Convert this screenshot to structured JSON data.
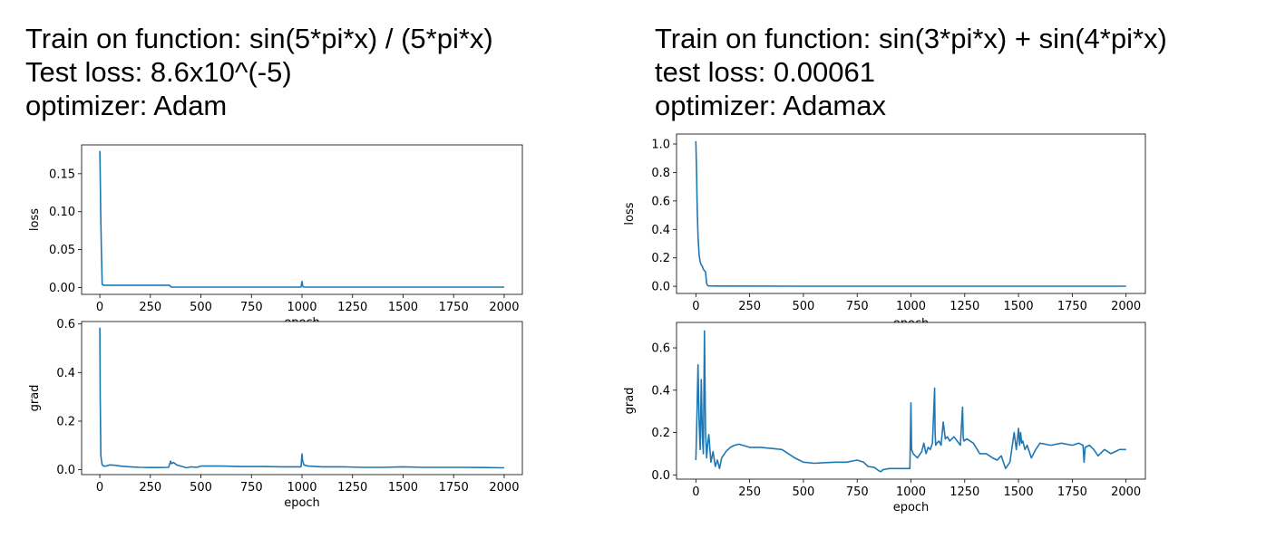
{
  "left_panel": {
    "title_line1": "Train on function: sin(5*pi*x) / (5*pi*x)",
    "title_line2": "Test loss: 8.6x10^(-5)",
    "title_line3": "optimizer: Adam"
  },
  "right_panel": {
    "title_line1": "Train on function: sin(3*pi*x) + sin(4*pi*x)",
    "title_line2": "test loss: 0.00061",
    "title_line3": "optimizer: Adamax"
  },
  "chart_data": [
    {
      "id": "left-loss",
      "type": "line",
      "title": "",
      "xlabel": "epoch",
      "ylabel": "loss",
      "xlim": [
        -90,
        2090
      ],
      "ylim": [
        -0.009,
        0.188
      ],
      "xticks": [
        0,
        250,
        500,
        750,
        1000,
        1250,
        1500,
        1750,
        2000
      ],
      "yticks": [
        0.0,
        0.05,
        0.1,
        0.15
      ],
      "ytick_labels": [
        "0.00",
        "0.05",
        "0.10",
        "0.15"
      ],
      "line_color": "#1f77b4",
      "x": [
        0,
        2,
        4,
        8,
        12,
        20,
        50,
        100,
        200,
        300,
        345,
        350,
        355,
        400,
        500,
        700,
        900,
        995,
        1000,
        1003,
        1005,
        1010,
        1200,
        1500,
        1800,
        2000
      ],
      "y": [
        0.18,
        0.15,
        0.1,
        0.05,
        0.004,
        0.003,
        0.003,
        0.003,
        0.003,
        0.003,
        0.003,
        0.001,
        0.0005,
        0.0005,
        0.0005,
        0.0005,
        0.0005,
        0.0005,
        0.008,
        0.003,
        0.001,
        0.0007,
        0.0006,
        0.0005,
        0.0005,
        0.0005
      ]
    },
    {
      "id": "left-grad",
      "type": "line",
      "title": "",
      "xlabel": "epoch",
      "ylabel": "grad",
      "xlim": [
        -90,
        2090
      ],
      "ylim": [
        -0.02,
        0.61
      ],
      "xticks": [
        0,
        250,
        500,
        750,
        1000,
        1250,
        1500,
        1750,
        2000
      ],
      "yticks": [
        0.0,
        0.2,
        0.4,
        0.6
      ],
      "ytick_labels": [
        "0.0",
        "0.2",
        "0.4",
        "0.6"
      ],
      "line_color": "#1f77b4",
      "x": [
        0,
        2,
        5,
        8,
        12,
        20,
        30,
        50,
        80,
        100,
        150,
        200,
        250,
        300,
        340,
        350,
        355,
        365,
        380,
        400,
        430,
        450,
        480,
        500,
        600,
        700,
        800,
        900,
        995,
        1000,
        1003,
        1010,
        1030,
        1100,
        1200,
        1300,
        1400,
        1500,
        1600,
        1700,
        1800,
        1900,
        2000
      ],
      "y": [
        0.585,
        0.3,
        0.06,
        0.04,
        0.02,
        0.015,
        0.015,
        0.02,
        0.018,
        0.015,
        0.012,
        0.01,
        0.009,
        0.009,
        0.01,
        0.035,
        0.025,
        0.03,
        0.02,
        0.015,
        0.008,
        0.012,
        0.01,
        0.015,
        0.015,
        0.013,
        0.013,
        0.012,
        0.012,
        0.065,
        0.035,
        0.02,
        0.015,
        0.012,
        0.012,
        0.01,
        0.01,
        0.012,
        0.01,
        0.01,
        0.01,
        0.009,
        0.008
      ]
    },
    {
      "id": "right-loss",
      "type": "line",
      "title": "",
      "xlabel": "epoch",
      "ylabel": "loss",
      "xlim": [
        -90,
        2090
      ],
      "ylim": [
        -0.05,
        1.07
      ],
      "xticks": [
        0,
        250,
        500,
        750,
        1000,
        1250,
        1500,
        1750,
        2000
      ],
      "yticks": [
        0.0,
        0.2,
        0.4,
        0.6,
        0.8,
        1.0
      ],
      "ytick_labels": [
        "0.0",
        "0.2",
        "0.4",
        "0.6",
        "0.8",
        "1.0"
      ],
      "line_color": "#1f77b4",
      "x": [
        0,
        3,
        6,
        10,
        15,
        20,
        25,
        30,
        35,
        40,
        45,
        50,
        55,
        60,
        100,
        500,
        1000,
        1500,
        2000
      ],
      "y": [
        1.02,
        0.8,
        0.55,
        0.35,
        0.22,
        0.17,
        0.15,
        0.14,
        0.12,
        0.11,
        0.1,
        0.02,
        0.005,
        0.003,
        0.002,
        0.001,
        0.001,
        0.001,
        0.001
      ]
    },
    {
      "id": "right-grad",
      "type": "line",
      "title": "",
      "xlabel": "epoch",
      "ylabel": "grad",
      "xlim": [
        -90,
        2090
      ],
      "ylim": [
        -0.02,
        0.72
      ],
      "xticks": [
        0,
        250,
        500,
        750,
        1000,
        1250,
        1500,
        1750,
        2000
      ],
      "yticks": [
        0.0,
        0.2,
        0.4,
        0.6
      ],
      "ytick_labels": [
        "0.0",
        "0.2",
        "0.4",
        "0.6"
      ],
      "line_color": "#1f77b4",
      "x": [
        0,
        5,
        10,
        15,
        20,
        25,
        30,
        35,
        40,
        45,
        50,
        55,
        60,
        70,
        80,
        90,
        100,
        110,
        120,
        140,
        160,
        180,
        200,
        250,
        300,
        350,
        400,
        430,
        460,
        480,
        500,
        550,
        600,
        650,
        700,
        750,
        780,
        800,
        830,
        850,
        860,
        870,
        900,
        950,
        995,
        1000,
        1003,
        1010,
        1030,
        1050,
        1060,
        1070,
        1080,
        1090,
        1100,
        1110,
        1112,
        1115,
        1120,
        1130,
        1140,
        1150,
        1160,
        1170,
        1180,
        1200,
        1230,
        1240,
        1243,
        1246,
        1260,
        1290,
        1320,
        1350,
        1380,
        1400,
        1420,
        1440,
        1460,
        1480,
        1490,
        1500,
        1505,
        1510,
        1515,
        1520,
        1530,
        1540,
        1560,
        1580,
        1600,
        1650,
        1700,
        1750,
        1780,
        1800,
        1805,
        1810,
        1830,
        1850,
        1870,
        1900,
        1930,
        1950,
        1970,
        2000
      ],
      "y": [
        0.07,
        0.28,
        0.52,
        0.25,
        0.12,
        0.45,
        0.18,
        0.1,
        0.68,
        0.2,
        0.08,
        0.15,
        0.19,
        0.06,
        0.11,
        0.04,
        0.07,
        0.03,
        0.08,
        0.11,
        0.13,
        0.14,
        0.145,
        0.13,
        0.13,
        0.125,
        0.12,
        0.1,
        0.08,
        0.07,
        0.06,
        0.055,
        0.058,
        0.06,
        0.06,
        0.07,
        0.06,
        0.04,
        0.035,
        0.02,
        0.015,
        0.025,
        0.03,
        0.03,
        0.03,
        0.34,
        0.12,
        0.1,
        0.08,
        0.11,
        0.15,
        0.1,
        0.13,
        0.12,
        0.15,
        0.41,
        0.2,
        0.14,
        0.15,
        0.16,
        0.14,
        0.25,
        0.17,
        0.18,
        0.16,
        0.18,
        0.14,
        0.32,
        0.18,
        0.16,
        0.17,
        0.15,
        0.1,
        0.1,
        0.08,
        0.07,
        0.09,
        0.03,
        0.06,
        0.2,
        0.12,
        0.22,
        0.14,
        0.2,
        0.15,
        0.16,
        0.12,
        0.14,
        0.08,
        0.12,
        0.15,
        0.14,
        0.15,
        0.14,
        0.15,
        0.14,
        0.06,
        0.13,
        0.14,
        0.12,
        0.09,
        0.12,
        0.1,
        0.11,
        0.12,
        0.12
      ]
    }
  ]
}
